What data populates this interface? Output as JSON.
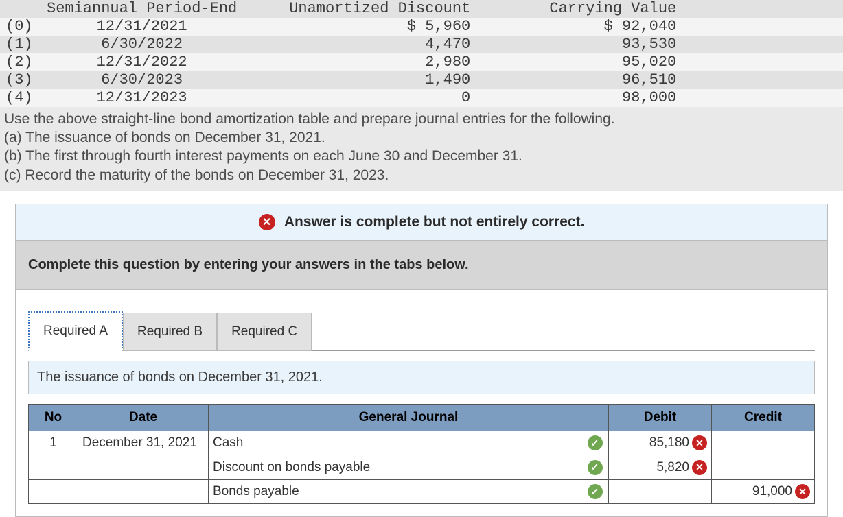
{
  "amortization": {
    "headers": {
      "period_end": "Semiannual Period-End",
      "unamortized_discount": "Unamortized Discount",
      "carrying_value": "Carrying Value"
    },
    "rows": [
      {
        "idx": "(0)",
        "period": "12/31/2021",
        "ud": "$ 5,960",
        "cv": "$ 92,040"
      },
      {
        "idx": "(1)",
        "period": "6/30/2022",
        "ud": "4,470",
        "cv": "93,530"
      },
      {
        "idx": "(2)",
        "period": "12/31/2022",
        "ud": "2,980",
        "cv": "95,020"
      },
      {
        "idx": "(3)",
        "period": "6/30/2023",
        "ud": "1,490",
        "cv": "96,510"
      },
      {
        "idx": "(4)",
        "period": "12/31/2023",
        "ud": "0",
        "cv": "98,000"
      }
    ]
  },
  "question": {
    "intro": "Use the above straight-line bond amortization table and prepare journal entries for the following.",
    "a": "(a) The issuance of bonds on December 31, 2021.",
    "b": "(b) The first through fourth interest payments on each June 30 and December 31.",
    "c": "(c) Record the maturity of the bonds on December 31, 2023."
  },
  "status": {
    "message": "Answer is complete but not entirely correct."
  },
  "instruction": "Complete this question by entering your answers in the tabs below.",
  "tabs": {
    "a": "Required A",
    "b": "Required B",
    "c": "Required C"
  },
  "subdesc": "The issuance of bonds on December 31, 2021.",
  "journal": {
    "headers": {
      "no": "No",
      "date": "Date",
      "gj": "General Journal",
      "debit": "Debit",
      "credit": "Credit"
    },
    "rows": [
      {
        "no": "1",
        "date": "December 31, 2021",
        "account": "Cash",
        "indent": 1,
        "mark": "check",
        "debit": "85,180",
        "debit_mark": "x",
        "credit": "",
        "credit_mark": ""
      },
      {
        "no": "",
        "date": "",
        "account": "Discount on bonds payable",
        "indent": 1,
        "mark": "check",
        "debit": "5,820",
        "debit_mark": "x",
        "credit": "",
        "credit_mark": ""
      },
      {
        "no": "",
        "date": "",
        "account": "Bonds payable",
        "indent": 2,
        "mark": "check",
        "debit": "",
        "debit_mark": "",
        "credit": "91,000",
        "credit_mark": "x"
      }
    ]
  },
  "colors": {
    "header_bg": "#7c9cc0",
    "status_bg": "#e9f3fb",
    "instruction_bg": "#d6d6d6",
    "check": "#6fa850",
    "x": "#c62222"
  }
}
